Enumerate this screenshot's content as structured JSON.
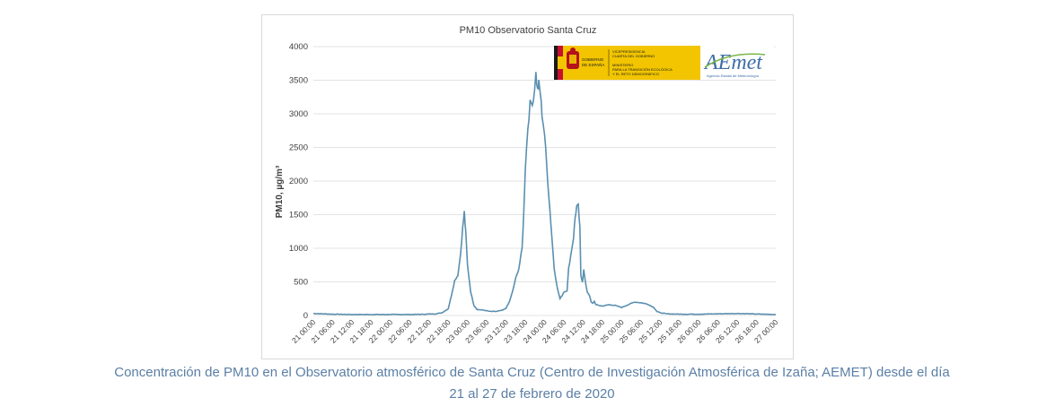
{
  "chart_data": {
    "type": "line",
    "title": "PM10 Observatorio Santa Cruz",
    "ylabel": "PM10, µg/m³",
    "ylim": [
      0,
      4000
    ],
    "yticks": [
      0,
      500,
      1000,
      1500,
      2000,
      2500,
      3000,
      3500,
      4000
    ],
    "grid": true,
    "color": "#5b8fb0",
    "xticks": [
      "21 00:00",
      "21 06:00",
      "21 12:00",
      "21 18:00",
      "22 00:00",
      "22 06:00",
      "22 12:00",
      "22 18:00",
      "23 00:00",
      "23 06:00",
      "23 12:00",
      "23 18:00",
      "24 00:00",
      "24 06:00",
      "24 12:00",
      "24 18:00",
      "25 00:00",
      "25 06:00",
      "25 12:00",
      "25 18:00",
      "26 00:00",
      "26 06:00",
      "26 12:00",
      "26 18:00",
      "27 00:00"
    ],
    "x_unit": "hours since 21 00:00",
    "series": [
      {
        "points": [
          [
            0,
            30
          ],
          [
            6,
            20
          ],
          [
            12,
            15
          ],
          [
            18,
            15
          ],
          [
            24,
            15
          ],
          [
            30,
            15
          ],
          [
            34,
            18
          ],
          [
            38,
            25
          ],
          [
            40,
            40
          ],
          [
            42,
            100
          ],
          [
            43,
            300
          ],
          [
            44,
            520
          ],
          [
            45,
            600
          ],
          [
            45.8,
            900
          ],
          [
            46.5,
            1300
          ],
          [
            47,
            1540
          ],
          [
            47.5,
            1200
          ],
          [
            48,
            750
          ],
          [
            49,
            350
          ],
          [
            50,
            150
          ],
          [
            51,
            90
          ],
          [
            53,
            80
          ],
          [
            55,
            60
          ],
          [
            57,
            60
          ],
          [
            59,
            80
          ],
          [
            60,
            110
          ],
          [
            61,
            200
          ],
          [
            62,
            350
          ],
          [
            63,
            550
          ],
          [
            64,
            700
          ],
          [
            65,
            1000
          ],
          [
            65.5,
            1500
          ],
          [
            66,
            2200
          ],
          [
            66.8,
            2800
          ],
          [
            67.5,
            3150
          ],
          [
            68.5,
            3200
          ],
          [
            69.3,
            3600
          ],
          [
            69.8,
            3350
          ],
          [
            70.2,
            3450
          ],
          [
            70.7,
            3300
          ],
          [
            71.2,
            3000
          ],
          [
            72,
            2700
          ],
          [
            73,
            2000
          ],
          [
            74,
            1350
          ],
          [
            75,
            700
          ],
          [
            76,
            400
          ],
          [
            76.8,
            250
          ],
          [
            77.5,
            300
          ],
          [
            78,
            350
          ],
          [
            79,
            370
          ],
          [
            79.5,
            700
          ],
          [
            80.5,
            1000
          ],
          [
            81,
            1150
          ],
          [
            81.5,
            1450
          ],
          [
            82,
            1620
          ],
          [
            82.5,
            1630
          ],
          [
            83,
            1300
          ],
          [
            83.3,
            600
          ],
          [
            83.8,
            500
          ],
          [
            84.2,
            680
          ],
          [
            84.7,
            500
          ],
          [
            85.3,
            350
          ],
          [
            86,
            300
          ],
          [
            86.5,
            200
          ],
          [
            87,
            180
          ],
          [
            87.5,
            210
          ],
          [
            88,
            160
          ],
          [
            90,
            140
          ],
          [
            92,
            160
          ],
          [
            94,
            150
          ],
          [
            96,
            120
          ],
          [
            98,
            160
          ],
          [
            100,
            200
          ],
          [
            102,
            190
          ],
          [
            104,
            170
          ],
          [
            106,
            120
          ],
          [
            107,
            60
          ],
          [
            108,
            40
          ],
          [
            110,
            25
          ],
          [
            114,
            20
          ],
          [
            120,
            20
          ],
          [
            126,
            25
          ],
          [
            132,
            30
          ],
          [
            138,
            22
          ],
          [
            144,
            15
          ]
        ]
      }
    ]
  },
  "logos": {
    "gov_lines": [
      "GOBIERNO",
      "DE ESPAÑA"
    ],
    "gov_text_lines": [
      "VICEPRESIDENCIA",
      "CUARTA DEL GOBIERNO",
      "",
      "MINISTERIO",
      "PARA LA TRANSICIÓN ECOLÓGICA",
      "Y EL RETO DEMOGRÁFICO"
    ],
    "aemet_name": "AEmet",
    "aemet_subtitle": "Agencia Estatal de Meteorología",
    "gov_yellow": "#f2c500",
    "flag_red": "#c8102e",
    "aemet_blue": "#3d6ea8",
    "aemet_green": "#7ab648"
  },
  "caption": {
    "line1": "Concentración de PM10 en el Observatorio atmosférico de Santa Cruz (Centro de Investigación Atmosférica de Izaña; AEMET) desde el día",
    "line2": "21 al 27 de febrero de 2020",
    "color": "#5b7fa6"
  }
}
